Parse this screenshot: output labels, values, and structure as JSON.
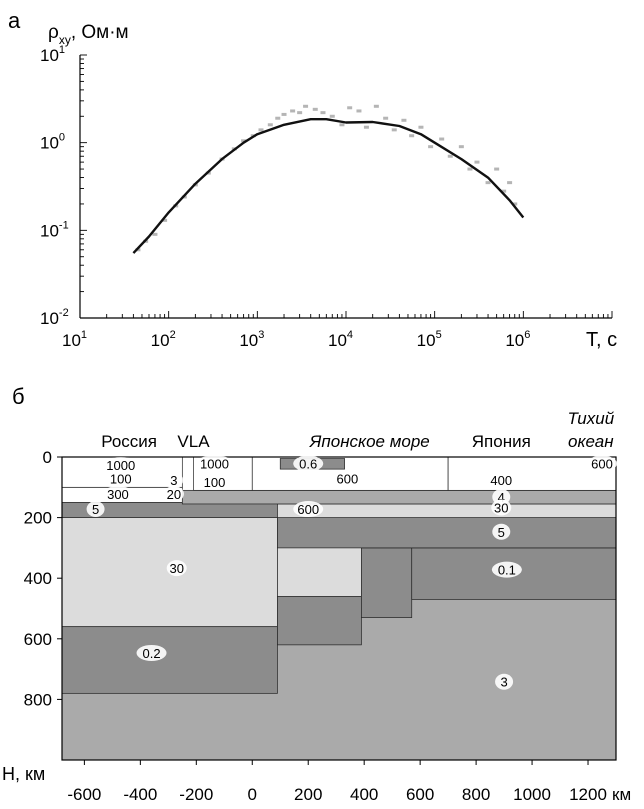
{
  "chart_data": [
    {
      "type": "scatter",
      "panel_label": "а",
      "ylabel": "ρxy, Ом·м",
      "ylabel_main": "ρ",
      "ylabel_sub": "xy",
      "ylabel_rest": ", Ом·м",
      "xlabel": "T, с",
      "x_scale": "log",
      "y_scale": "log",
      "xlim": [
        10,
        10000000
      ],
      "ylim": [
        0.01,
        10
      ],
      "xticks": [
        {
          "base": "10",
          "exp": "1"
        },
        {
          "base": "10",
          "exp": "2"
        },
        {
          "base": "10",
          "exp": "3"
        },
        {
          "base": "10",
          "exp": "4"
        },
        {
          "base": "10",
          "exp": "5"
        },
        {
          "base": "10",
          "exp": "6"
        }
      ],
      "yticks": [
        {
          "base": "10",
          "exp": "-2"
        },
        {
          "base": "10",
          "exp": "-1"
        },
        {
          "base": "10",
          "exp": "0"
        },
        {
          "base": "10",
          "exp": "1"
        }
      ],
      "grid": false,
      "series": [
        {
          "style": "model curve (solid black line)",
          "color": "#111111",
          "points": [
            [
              40,
              0.055
            ],
            [
              60,
              0.085
            ],
            [
              100,
              0.16
            ],
            [
              200,
              0.34
            ],
            [
              400,
              0.65
            ],
            [
              700,
              1.0
            ],
            [
              1000,
              1.25
            ],
            [
              2000,
              1.6
            ],
            [
              4000,
              1.85
            ],
            [
              6000,
              1.85
            ],
            [
              10000,
              1.7
            ],
            [
              20000,
              1.72
            ],
            [
              40000,
              1.55
            ],
            [
              70000,
              1.25
            ],
            [
              100000,
              1.0
            ],
            [
              200000,
              0.65
            ],
            [
              400000,
              0.4
            ],
            [
              700000,
              0.22
            ],
            [
              1000000,
              0.14
            ]
          ]
        },
        {
          "style": "observed data (grey points)",
          "color": "#b5b5b5",
          "points": [
            [
              45,
              0.06
            ],
            [
              55,
              0.075
            ],
            [
              70,
              0.09
            ],
            [
              90,
              0.13
            ],
            [
              120,
              0.19
            ],
            [
              150,
              0.24
            ],
            [
              200,
              0.33
            ],
            [
              280,
              0.45
            ],
            [
              400,
              0.65
            ],
            [
              550,
              0.85
            ],
            [
              700,
              1.05
            ],
            [
              900,
              1.2
            ],
            [
              1100,
              1.4
            ],
            [
              1400,
              1.6
            ],
            [
              1700,
              1.9
            ],
            [
              2000,
              2.1
            ],
            [
              2500,
              2.3
            ],
            [
              3000,
              2.2
            ],
            [
              3500,
              2.6
            ],
            [
              4500,
              2.4
            ],
            [
              5500,
              2.2
            ],
            [
              7000,
              2.0
            ],
            [
              9000,
              1.6
            ],
            [
              11000,
              2.5
            ],
            [
              14000,
              2.3
            ],
            [
              17000,
              1.5
            ],
            [
              22000,
              2.6
            ],
            [
              28000,
              1.9
            ],
            [
              35000,
              1.4
            ],
            [
              45000,
              1.8
            ],
            [
              55000,
              1.2
            ],
            [
              70000,
              1.5
            ],
            [
              90000,
              0.9
            ],
            [
              120000,
              1.1
            ],
            [
              150000,
              0.7
            ],
            [
              200000,
              0.9
            ],
            [
              250000,
              0.5
            ],
            [
              300000,
              0.6
            ],
            [
              400000,
              0.35
            ],
            [
              500000,
              0.5
            ],
            [
              600000,
              0.28
            ],
            [
              700000,
              0.35
            ],
            [
              800000,
              0.2
            ]
          ]
        }
      ]
    },
    {
      "type": "table",
      "panel_label": "б",
      "ylabel": "H, км",
      "xlabel": "км",
      "xlim": [
        -680,
        1300
      ],
      "ylim": [
        0,
        1000
      ],
      "y_inverted": true,
      "xticks": [
        "-600",
        "-400",
        "-200",
        "0",
        "200",
        "400",
        "600",
        "800",
        "1000",
        "1200"
      ],
      "xtick_values": [
        -600,
        -400,
        -200,
        0,
        200,
        400,
        600,
        800,
        1000,
        1200
      ],
      "yticks": [
        "0",
        "200",
        "400",
        "600",
        "800"
      ],
      "ytick_values": [
        0,
        200,
        400,
        600,
        800
      ],
      "region_labels": [
        {
          "text": "Россия",
          "italic": false,
          "x": -440
        },
        {
          "text": "VLA",
          "italic": false,
          "x": -210
        },
        {
          "text": "Японское море",
          "italic": true,
          "x": 420
        },
        {
          "text": "Япония",
          "italic": false,
          "x": 890
        },
        {
          "text": "Тихий",
          "italic": true,
          "x": 1210
        },
        {
          "text": "океан",
          "italic": true,
          "x": 1210
        }
      ],
      "colors": {
        "high": "#ffffff",
        "light": "#dcdcdc",
        "mid": "#aaaaaa",
        "dark": "#8c8c8c"
      },
      "blocks": [
        {
          "x0": -680,
          "x1": 1300,
          "y0": 200,
          "y1": 1000,
          "tone": "mid"
        },
        {
          "x0": -680,
          "x1": 90,
          "y0": 200,
          "y1": 560,
          "tone": "light"
        },
        {
          "x0": 90,
          "x1": 390,
          "y0": 200,
          "y1": 460,
          "tone": "light"
        },
        {
          "x0": -680,
          "x1": 90,
          "y0": 560,
          "y1": 780,
          "tone": "dark"
        },
        {
          "x0": 90,
          "x1": 390,
          "y0": 460,
          "y1": 620,
          "tone": "dark"
        },
        {
          "x0": 390,
          "x1": 570,
          "y0": 300,
          "y1": 530,
          "tone": "dark"
        },
        {
          "x0": 570,
          "x1": 1300,
          "y0": 300,
          "y1": 470,
          "tone": "dark"
        },
        {
          "x0": 90,
          "x1": 1300,
          "y0": 200,
          "y1": 300,
          "tone": "dark"
        },
        {
          "x0": -680,
          "x1": 90,
          "y0": 150,
          "y1": 200,
          "tone": "dark"
        },
        {
          "x0": 90,
          "x1": 1300,
          "y0": 155,
          "y1": 200,
          "tone": "light"
        },
        {
          "x0": -680,
          "x1": -250,
          "y0": 100,
          "y1": 150,
          "tone": "high"
        },
        {
          "x0": -250,
          "x1": 1300,
          "y0": 110,
          "y1": 155,
          "tone": "mid"
        },
        {
          "x0": -680,
          "x1": -250,
          "y0": 0,
          "y1": 100,
          "tone": "high"
        },
        {
          "x0": -210,
          "x1": 0,
          "y0": 0,
          "y1": 110,
          "tone": "high"
        },
        {
          "x0": 0,
          "x1": 700,
          "y0": 0,
          "y1": 110,
          "tone": "high"
        },
        {
          "x0": 700,
          "x1": 1300,
          "y0": 0,
          "y1": 110,
          "tone": "high"
        },
        {
          "x0": 100,
          "x1": 330,
          "y0": 5,
          "y1": 40,
          "tone": "dark"
        }
      ],
      "values": [
        {
          "text": "1000",
          "x": -470,
          "y": 30
        },
        {
          "text": "100",
          "x": -470,
          "y": 75
        },
        {
          "text": "3",
          "x": -280,
          "y": 80
        },
        {
          "text": "300",
          "x": -480,
          "y": 125
        },
        {
          "text": "20",
          "x": -280,
          "y": 125
        },
        {
          "text": "5",
          "x": -560,
          "y": 175
        },
        {
          "text": "1000",
          "x": -135,
          "y": 25
        },
        {
          "text": "100",
          "x": -135,
          "y": 85
        },
        {
          "text": "0.6",
          "x": 200,
          "y": 25
        },
        {
          "text": "600",
          "x": 340,
          "y": 75
        },
        {
          "text": "600",
          "x": 1250,
          "y": 25
        },
        {
          "text": "400",
          "x": 890,
          "y": 80
        },
        {
          "text": "4",
          "x": 890,
          "y": 135
        },
        {
          "text": "600",
          "x": 200,
          "y": 175
        },
        {
          "text": "30",
          "x": 890,
          "y": 170
        },
        {
          "text": "5",
          "x": 890,
          "y": 250
        },
        {
          "text": "30",
          "x": -270,
          "y": 370
        },
        {
          "text": "0.1",
          "x": 910,
          "y": 375
        },
        {
          "text": "0.2",
          "x": -360,
          "y": 650
        },
        {
          "text": "3",
          "x": 900,
          "y": 745
        }
      ]
    }
  ]
}
